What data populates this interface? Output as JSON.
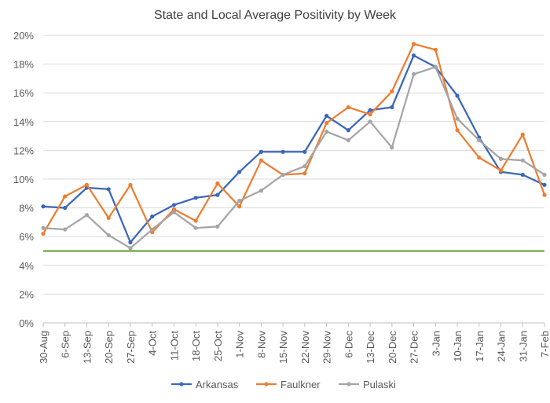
{
  "chart_data": {
    "type": "line",
    "title": "State and Local Average Positivity by Week",
    "categories": [
      "30-Aug",
      "6-Sep",
      "13-Sep",
      "20-Sep",
      "27-Sep",
      "4-Oct",
      "11-Oct",
      "18-Oct",
      "25-Oct",
      "1-Nov",
      "8-Nov",
      "15-Nov",
      "22-Nov",
      "29-Nov",
      "6-Dec",
      "13-Dec",
      "20-Dec",
      "27-Dec",
      "3-Jan",
      "10-Jan",
      "17-Jan",
      "24-Jan",
      "31-Jan",
      "7-Feb"
    ],
    "ylim": [
      0,
      20
    ],
    "yticks": [
      "0%",
      "2%",
      "4%",
      "6%",
      "8%",
      "10%",
      "12%",
      "14%",
      "16%",
      "18%",
      "20%"
    ],
    "ytick_values": [
      0,
      2,
      4,
      6,
      8,
      10,
      12,
      14,
      16,
      18,
      20
    ],
    "grid": true,
    "legend_position": "bottom",
    "reference_line": {
      "value": 5,
      "color": "#5b9a2e"
    },
    "series": [
      {
        "name": "Arkansas",
        "color": "#3a67b9",
        "values": [
          8.1,
          8.0,
          9.4,
          9.3,
          5.6,
          7.4,
          8.2,
          8.7,
          8.9,
          10.5,
          11.9,
          11.9,
          11.9,
          14.4,
          13.4,
          14.8,
          15.0,
          18.6,
          17.8,
          15.8,
          12.9,
          10.5,
          10.3,
          9.6
        ]
      },
      {
        "name": "Faulkner",
        "color": "#ed7d31",
        "values": [
          6.2,
          8.8,
          9.6,
          7.3,
          9.6,
          6.3,
          7.9,
          7.1,
          9.7,
          8.1,
          11.3,
          10.3,
          10.4,
          13.9,
          15.0,
          14.5,
          16.1,
          19.4,
          19.0,
          13.4,
          11.5,
          10.6,
          13.1,
          8.9
        ]
      },
      {
        "name": "Pulaski",
        "color": "#a5a5a5",
        "values": [
          6.6,
          6.5,
          7.5,
          6.1,
          5.2,
          6.5,
          7.7,
          6.6,
          6.7,
          8.5,
          9.2,
          10.3,
          10.9,
          13.3,
          12.7,
          14.0,
          12.2,
          17.3,
          17.8,
          14.2,
          12.7,
          11.4,
          11.3,
          10.3
        ]
      }
    ]
  }
}
